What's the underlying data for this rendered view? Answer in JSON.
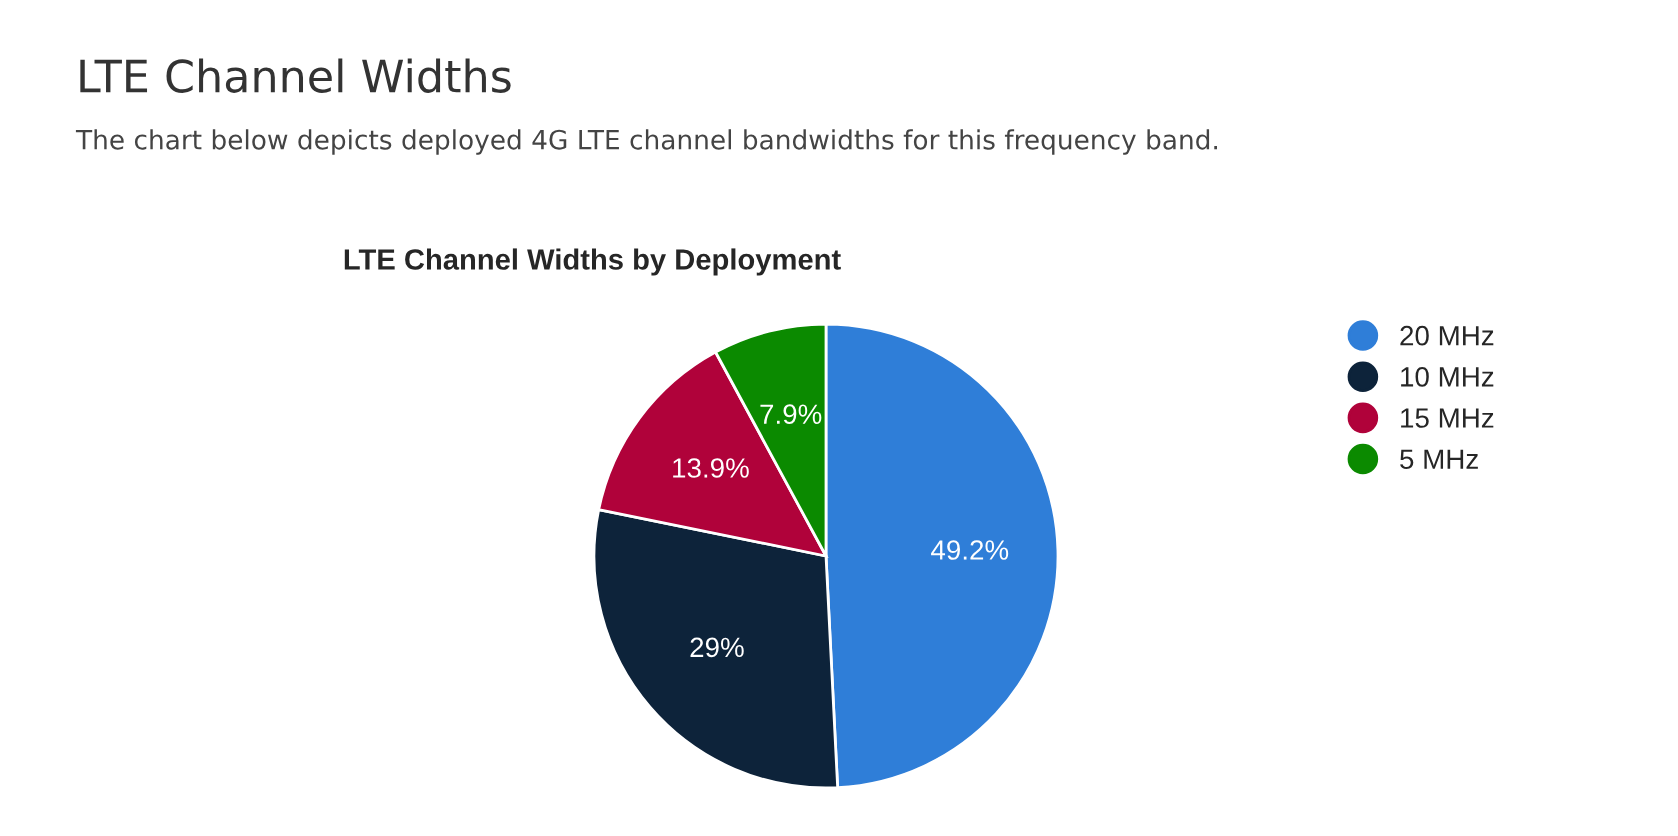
{
  "chart_data": {
    "type": "pie",
    "title": "LTE Channel Widths by Deployment",
    "annotations": [
      "LTE Channel Widths",
      "The chart below depicts deployed 4G LTE channel bandwidths for this frequency band."
    ],
    "categories": [
      "20 MHz",
      "10 MHz",
      "15 MHz",
      "5 MHz"
    ],
    "values": [
      49.2,
      29,
      13.9,
      7.9
    ],
    "value_labels": [
      "49.2%",
      "29%",
      "13.9%",
      "7.9%"
    ],
    "colors": [
      "#2f7ed8",
      "#0d233a",
      "#b0023a",
      "#0b8a00"
    ],
    "legend": "right",
    "marker": "circle"
  }
}
